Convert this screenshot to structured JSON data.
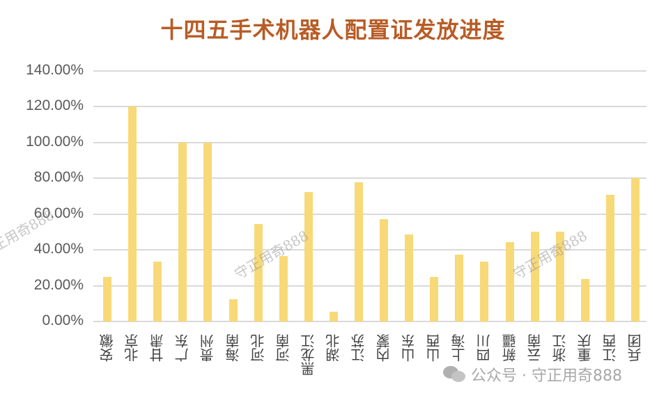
{
  "chart_data": {
    "type": "bar",
    "title": "十四五手术机器人配置证发放进度",
    "xlabel": "",
    "ylabel": "",
    "ylim": [
      0,
      1.4
    ],
    "grid": true,
    "legend": null,
    "yticks": [
      "0.00%",
      "20.00%",
      "40.00%",
      "60.00%",
      "80.00%",
      "100.00%",
      "120.00%",
      "140.00%"
    ],
    "categories": [
      "安徽",
      "北京",
      "甘肃",
      "广东",
      "贵州",
      "海南",
      "河北",
      "河南",
      "黑龙江",
      "湖北",
      "江苏",
      "内蒙",
      "山东",
      "山西",
      "上海",
      "四川",
      "新疆",
      "云南",
      "浙江",
      "重庆",
      "江西",
      "兵团"
    ],
    "values": [
      0.25,
      1.2,
      0.333,
      1.0,
      1.0,
      0.125,
      0.545,
      0.364,
      0.722,
      0.056,
      0.778,
      0.571,
      0.486,
      0.25,
      0.375,
      0.333,
      0.444,
      0.5,
      0.5,
      0.238,
      0.706,
      0.8
    ],
    "bar_color": "#f8d978",
    "title_color": "#b85c25"
  },
  "watermarks": [
    "守正用奇888",
    "守正用奇888",
    "守正用奇888"
  ],
  "footer": {
    "text": "公众号 · 守正用奇888",
    "icon": "wechat-icon"
  }
}
